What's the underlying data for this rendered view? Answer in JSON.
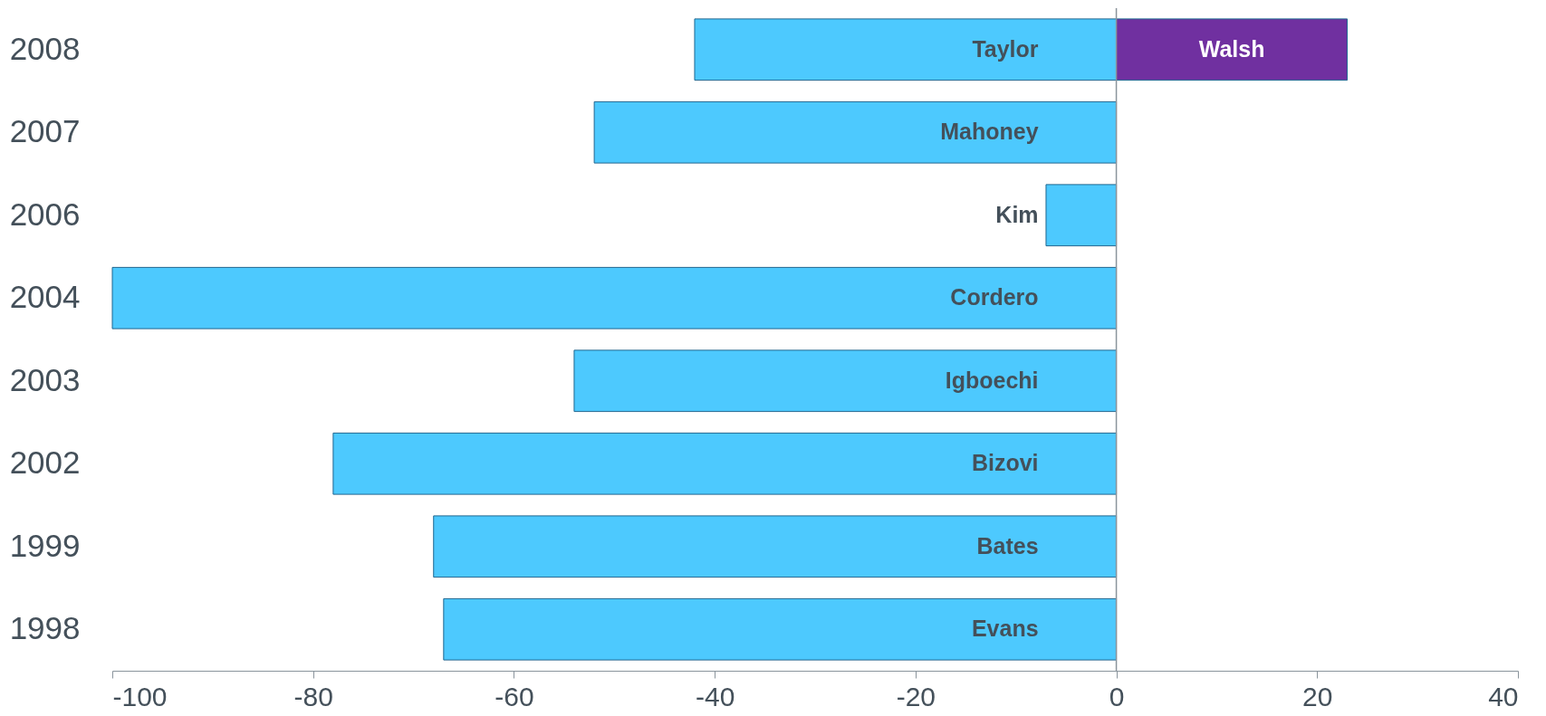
{
  "chart_data": {
    "type": "bar",
    "orientation": "horizontal",
    "categories": [
      "2008",
      "2007",
      "2006",
      "2004",
      "2003",
      "2002",
      "1999",
      "1998"
    ],
    "series": [
      {
        "color": "#4dc9fe",
        "values": [
          -42,
          -52,
          -7,
          -100,
          -54,
          -78,
          -68,
          -67
        ],
        "value_labels": [
          "Taylor",
          "Mahoney",
          "Kim",
          "Cordero",
          "Igboechi",
          "Bizovi",
          "Bates",
          "Evans"
        ]
      },
      {
        "color": "#7030a0",
        "values": [
          23,
          null,
          null,
          null,
          null,
          null,
          null,
          null
        ],
        "value_labels": [
          "Walsh",
          null,
          null,
          null,
          null,
          null,
          null,
          null
        ]
      }
    ],
    "xlim": [
      -100,
      40
    ],
    "xticks": [
      -100,
      -80,
      -60,
      -40,
      -20,
      0,
      20,
      40
    ],
    "ref_lines": [
      {
        "axis": "x",
        "value": 0,
        "color": "#8a949c"
      }
    ],
    "grid": false
  }
}
